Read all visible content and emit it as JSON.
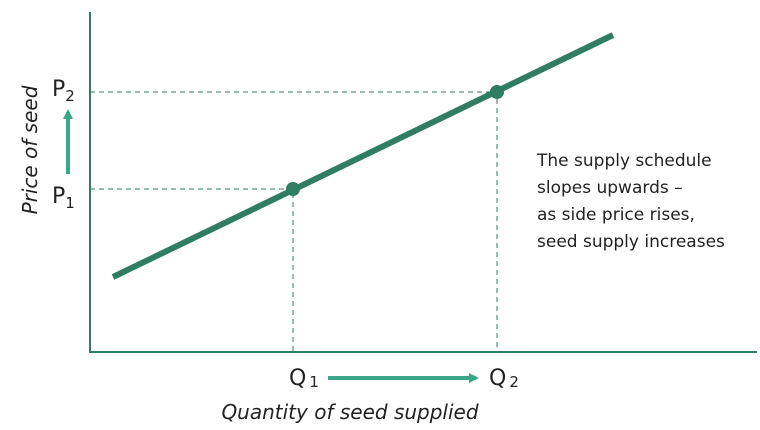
{
  "diagram": {
    "y_axis_label": "Price of seed",
    "x_axis_label": "Quantity of seed supplied",
    "points": [
      {
        "price": {
          "letter": "P",
          "sub": "1"
        },
        "quantity": {
          "letter": "Q",
          "sub": "1"
        }
      },
      {
        "price": {
          "letter": "P",
          "sub": "2"
        },
        "quantity": {
          "letter": "Q",
          "sub": "2"
        }
      }
    ],
    "annotation": [
      "The supply schedule",
      "slopes upwards –",
      "as side price rises,",
      "seed supply increases"
    ]
  }
}
